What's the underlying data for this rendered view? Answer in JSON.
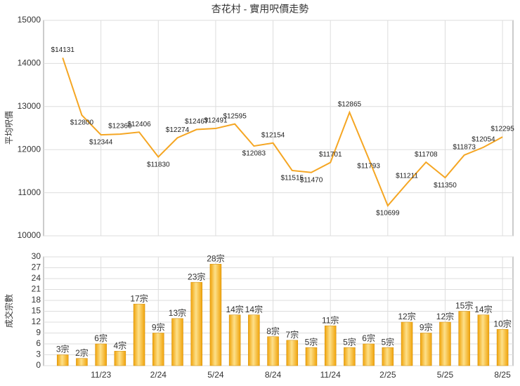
{
  "chart_data": [
    {
      "type": "line",
      "title": "杏花村 - 實用呎價走勢",
      "y_label": "平均呎價",
      "categories": [
        null,
        null,
        "11/23",
        null,
        null,
        "2/24",
        null,
        null,
        "5/24",
        null,
        null,
        "8/24",
        null,
        null,
        "11/24",
        null,
        null,
        "2/25",
        null,
        null,
        "5/25",
        null,
        null,
        "8/25"
      ],
      "values": [
        14131,
        12800,
        12344,
        12360,
        12406,
        11830,
        12274,
        12467,
        12491,
        12595,
        12083,
        12154,
        11515,
        11470,
        11701,
        12865,
        11793,
        10699,
        11211,
        11708,
        11350,
        11873,
        12054,
        12295
      ],
      "value_labels": [
        "$14131",
        "$12800",
        "$12344",
        "$12360",
        "$12406",
        "$11830",
        "$12274",
        "$12467",
        "$12491",
        "$12595",
        "$12083",
        "$12154",
        "$11515",
        "$11470",
        "$11701",
        "$12865",
        "$11793",
        "$10699",
        "$11211",
        "$11708",
        "$11350",
        "$11873",
        "$12054",
        "$12295"
      ],
      "color": "#f5a623",
      "ylim": [
        10000,
        15000
      ],
      "yticks": [
        10000,
        11000,
        12000,
        13000,
        14000,
        15000
      ],
      "grid": true
    },
    {
      "type": "bar",
      "y_label": "成交宗數",
      "categories": [
        null,
        null,
        "11/23",
        null,
        null,
        "2/24",
        null,
        null,
        "5/24",
        null,
        null,
        "8/24",
        null,
        null,
        "11/24",
        null,
        null,
        "2/25",
        null,
        null,
        "5/25",
        null,
        null,
        "8/25"
      ],
      "values": [
        3,
        2,
        6,
        4,
        17,
        9,
        13,
        23,
        28,
        14,
        14,
        8,
        7,
        5,
        11,
        5,
        6,
        5,
        12,
        9,
        12,
        15,
        14,
        10
      ],
      "value_labels": [
        "3宗",
        "2宗",
        "6宗",
        "4宗",
        "17宗",
        "9宗",
        "13宗",
        "23宗",
        "28宗",
        "14宗",
        "14宗",
        "8宗",
        "7宗",
        "5宗",
        "11宗",
        "5宗",
        "6宗",
        "5宗",
        "12宗",
        "9宗",
        "12宗",
        "15宗",
        "14宗",
        "10宗"
      ],
      "color": "#f0a30a",
      "ylim": [
        0,
        30
      ],
      "yticks": [
        0,
        3,
        6,
        9,
        12,
        15,
        18,
        21,
        24,
        27,
        30
      ],
      "grid": true
    }
  ]
}
